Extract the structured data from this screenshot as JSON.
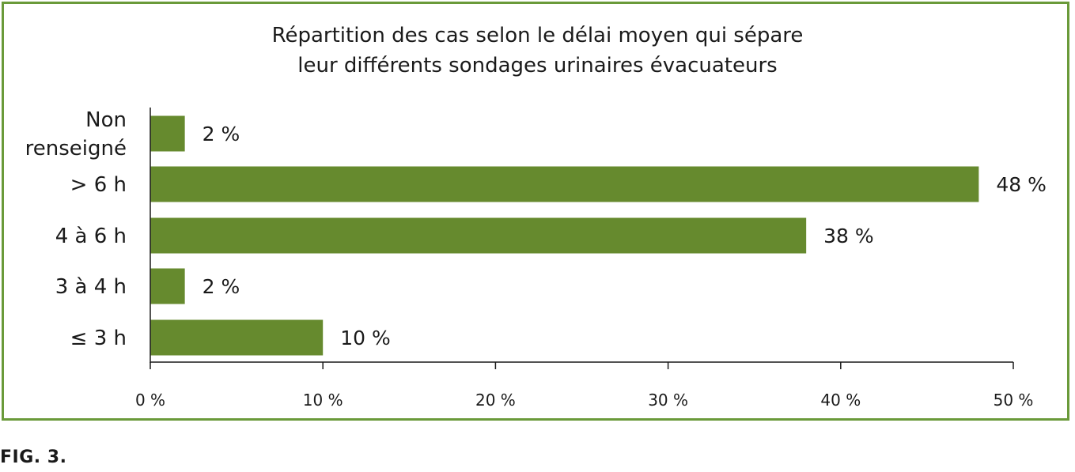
{
  "chart_data": {
    "type": "bar",
    "orientation": "horizontal",
    "title": "Répartition des cas selon le délai moyen qui sépare\nleur différents sondages urinaires évacuateurs",
    "categories": [
      "Non renseigné",
      "> 6 h",
      "4 à 6 h",
      "3 à 4 h",
      "≤ 3 h"
    ],
    "category_lines": [
      [
        "Non",
        "renseigné"
      ],
      [
        "> 6 h"
      ],
      [
        "4 à 6 h"
      ],
      [
        "3 à 4 h"
      ],
      [
        "≤ 3 h"
      ]
    ],
    "values": [
      2,
      48,
      38,
      2,
      10
    ],
    "value_labels": [
      "2 %",
      "48 %",
      "38 %",
      "2 %",
      "10 %"
    ],
    "xlim": [
      0,
      50
    ],
    "xticks": [
      0,
      10,
      20,
      30,
      40,
      50
    ],
    "xtick_labels": [
      "0 %",
      "10 %",
      "20 %",
      "30 %",
      "40 %",
      "50 %"
    ],
    "grid": false,
    "bar_color": "#668a2e",
    "frame_color": "#6a9a3a"
  },
  "caption": "FIG. 3."
}
